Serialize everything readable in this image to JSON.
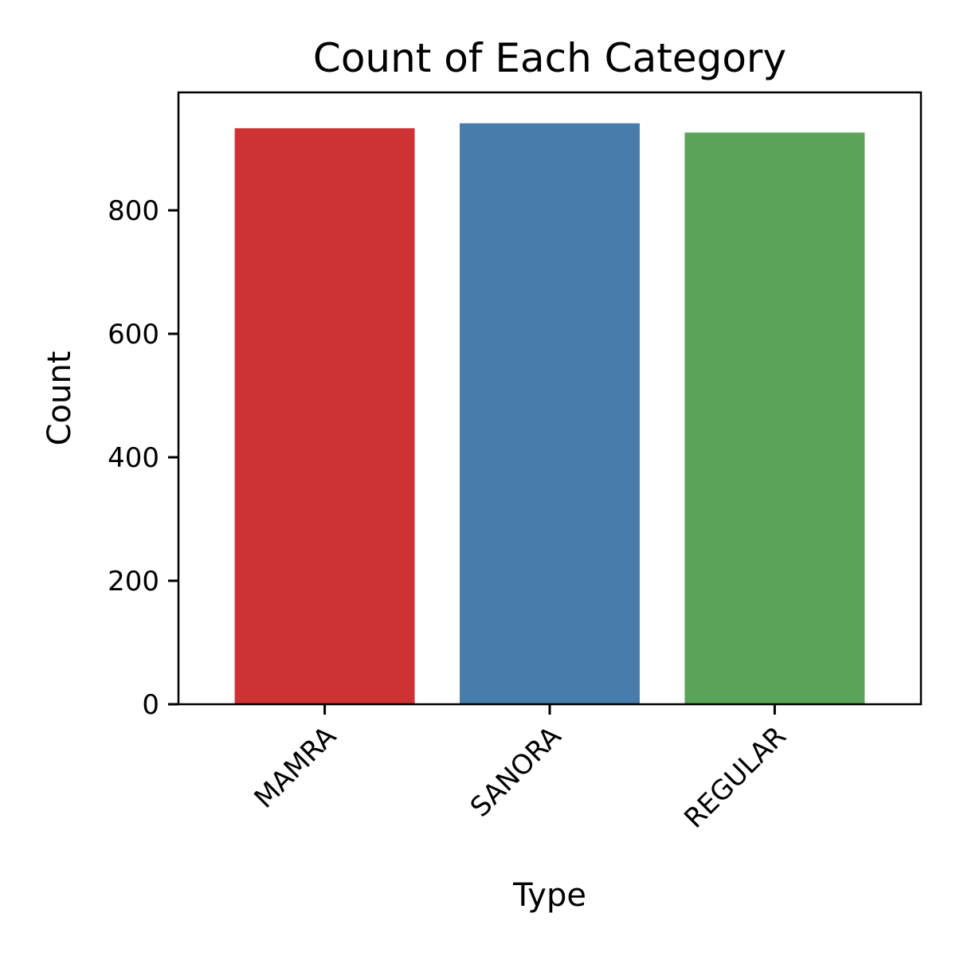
{
  "chart_data": {
    "type": "bar",
    "title": "Count of Each Category",
    "xlabel": "Type",
    "ylabel": "Count",
    "categories": [
      "MAMRA",
      "SANORA",
      "REGULAR"
    ],
    "values": [
      933,
      941,
      926
    ],
    "colors": [
      "#cd3234",
      "#487cab",
      "#5ca35a"
    ],
    "ylim": [
      0,
      991
    ],
    "yticks": [
      0,
      200,
      400,
      600,
      800
    ],
    "grid": false,
    "legend": "none"
  }
}
